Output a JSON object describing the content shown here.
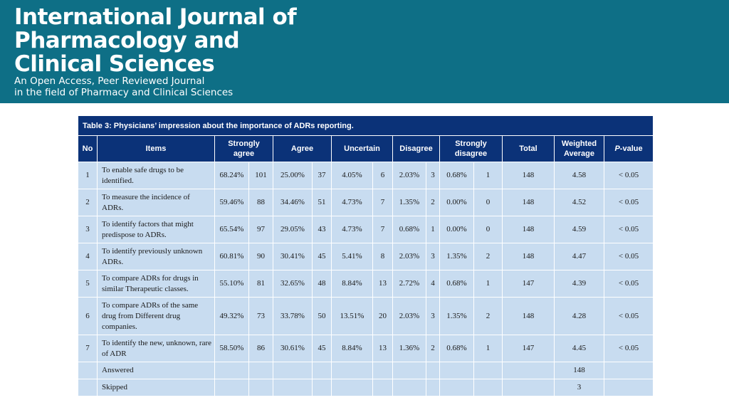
{
  "banner": {
    "title_line1": "International Journal of",
    "title_line2": "Pharmacology and",
    "title_line3": "Clinical Sciences",
    "subtitle_line1": "An Open Access, Peer Reviewed Journal",
    "subtitle_line2": "in the field of Pharmacy and Clinical Sciences",
    "color": "#0e6f86"
  },
  "table": {
    "caption": "Table 3: Physicians’ impression about the importance of ADRs reporting.",
    "header_color": "#0b3278",
    "cell_color": "#c8dcf0",
    "headers": {
      "no": "No",
      "items": "Items",
      "strongly_agree": "Strongly agree",
      "agree": "Agree",
      "uncertain": "Uncertain",
      "disagree": "Disagree",
      "strongly_disagree_1": "Strongly",
      "strongly_disagree_2": "disagree",
      "total": "Total",
      "weighted_1": "Weighted",
      "weighted_2": "Average",
      "p_value_italic": "P",
      "p_value_rest": "-value"
    },
    "rows": [
      {
        "no": "1",
        "item": "To enable safe drugs to be identified.",
        "sa_pct": "68.24%",
        "sa_n": "101",
        "a_pct": "25.00%",
        "a_n": "37",
        "u_pct": "4.05%",
        "u_n": "6",
        "d_pct": "2.03%",
        "d_n": "3",
        "sd_pct": "0.68%",
        "sd_n": "1",
        "total": "148",
        "wa": "4.58",
        "p": "< 0.05"
      },
      {
        "no": "2",
        "item": "To measure the incidence of ADRs.",
        "sa_pct": "59.46%",
        "sa_n": "88",
        "a_pct": "34.46%",
        "a_n": "51",
        "u_pct": "4.73%",
        "u_n": "7",
        "d_pct": "1.35%",
        "d_n": "2",
        "sd_pct": "0.00%",
        "sd_n": "0",
        "total": "148",
        "wa": "4.52",
        "p": "< 0.05"
      },
      {
        "no": "3",
        "item": "To identify factors that might predispose to ADRs.",
        "sa_pct": "65.54%",
        "sa_n": "97",
        "a_pct": "29.05%",
        "a_n": "43",
        "u_pct": "4.73%",
        "u_n": "7",
        "d_pct": "0.68%",
        "d_n": "1",
        "sd_pct": "0.00%",
        "sd_n": "0",
        "total": "148",
        "wa": "4.59",
        "p": "< 0.05"
      },
      {
        "no": "4",
        "item": "To identify previously unknown ADRs.",
        "sa_pct": "60.81%",
        "sa_n": "90",
        "a_pct": "30.41%",
        "a_n": "45",
        "u_pct": "5.41%",
        "u_n": "8",
        "d_pct": "2.03%",
        "d_n": "3",
        "sd_pct": "1.35%",
        "sd_n": "2",
        "total": "148",
        "wa": "4.47",
        "p": "< 0.05"
      },
      {
        "no": "5",
        "item": "To compare ADRs for drugs in similar Therapeutic classes.",
        "sa_pct": "55.10%",
        "sa_n": "81",
        "a_pct": "32.65%",
        "a_n": "48",
        "u_pct": "8.84%",
        "u_n": "13",
        "d_pct": "2.72%",
        "d_n": "4",
        "sd_pct": "0.68%",
        "sd_n": "1",
        "total": "147",
        "wa": "4.39",
        "p": "< 0.05"
      },
      {
        "no": "6",
        "item": "To compare ADRs of the same drug from Different drug companies.",
        "sa_pct": "49.32%",
        "sa_n": "73",
        "a_pct": "33.78%",
        "a_n": "50",
        "u_pct": "13.51%",
        "u_n": "20",
        "d_pct": "2.03%",
        "d_n": "3",
        "sd_pct": "1.35%",
        "sd_n": "2",
        "total": "148",
        "wa": "4.28",
        "p": "< 0.05"
      },
      {
        "no": "7",
        "item": "To identify the new, unknown, rare of ADR",
        "sa_pct": "58.50%",
        "sa_n": "86",
        "a_pct": "30.61%",
        "a_n": "45",
        "u_pct": "8.84%",
        "u_n": "13",
        "d_pct": "1.36%",
        "d_n": "2",
        "sd_pct": "0.68%",
        "sd_n": "1",
        "total": "147",
        "wa": "4.45",
        "p": "< 0.05"
      }
    ],
    "answered_label": "Answered",
    "answered_value": "148",
    "skipped_label": "Skipped",
    "skipped_value": "3"
  }
}
